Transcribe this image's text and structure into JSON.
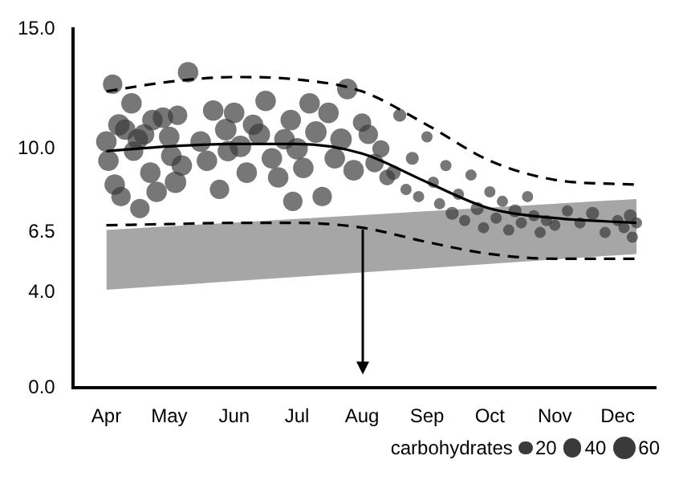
{
  "chart_data": {
    "type": "bubble",
    "legend_title": "carbohydrates",
    "size_legend": [
      20,
      40,
      60
    ],
    "xlim": [
      "--03-16",
      "--12-19"
    ],
    "xticks": [
      {
        "value": "--04-01",
        "label": "Apr"
      },
      {
        "value": "--05-01",
        "label": "May"
      },
      {
        "value": "--06-01",
        "label": "Jun"
      },
      {
        "value": "--07-01",
        "label": "Jul"
      },
      {
        "value": "--08-01",
        "label": "Aug"
      },
      {
        "value": "--09-01",
        "label": "Sep"
      },
      {
        "value": "--10-01",
        "label": "Oct"
      },
      {
        "value": "--11-01",
        "label": "Nov"
      },
      {
        "value": "--12-01",
        "label": "Dec"
      }
    ],
    "ylim": [
      0,
      15
    ],
    "yticks": [
      {
        "value": 0,
        "label": "0.0"
      },
      {
        "value": 4,
        "label": "4.0"
      },
      {
        "value": 6.5,
        "label": "6.5"
      },
      {
        "value": 10,
        "label": "10.0"
      },
      {
        "value": 15,
        "label": "15.0"
      }
    ],
    "grid": false,
    "series": [
      {
        "type": "area",
        "color": "#a6a6a6",
        "x": [
          "--04-01",
          "--12-10"
        ],
        "values": [
          null,
          null
        ],
        "lower": [
          4.1,
          5.6
        ],
        "upper": [
          6.6,
          7.9
        ]
      },
      {
        "color": "#3a3a3a",
        "x": [
          "--04-01",
          "--04-02",
          "--04-04",
          "--04-05",
          "--04-07",
          "--04-08",
          "--04-10",
          "--04-13",
          "--04-14",
          "--04-16",
          "--04-17",
          "--04-19",
          "--04-22",
          "--04-23",
          "--04-25",
          "--04-28",
          "--05-01",
          "--05-02",
          "--05-04",
          "--05-05",
          "--05-07",
          "--05-10",
          "--05-16",
          "--05-19",
          "--05-22",
          "--05-25",
          "--05-28",
          "--05-29",
          "--06-01",
          "--06-04",
          "--06-07",
          "--06-10",
          "--06-13",
          "--06-16",
          "--06-19",
          "--06-22",
          "--06-25",
          "--06-28",
          "--06-29",
          "--07-01",
          "--07-04",
          "--07-07",
          "--07-10",
          "--07-13",
          "--07-16",
          "--07-19",
          "--07-22",
          "--07-25",
          "--07-28",
          "--08-01",
          "--08-04",
          "--08-07",
          "--08-10",
          "--08-13",
          "--08-16",
          "--08-19",
          "--08-22",
          "--08-25",
          "--08-28",
          "--09-01",
          "--09-04",
          "--09-07",
          "--09-10",
          "--09-13",
          "--09-16",
          "--09-19",
          "--09-22",
          "--09-25",
          "--09-28",
          "--10-01",
          "--10-04",
          "--10-07",
          "--10-10",
          "--10-13",
          "--10-16",
          "--10-19",
          "--10-22",
          "--10-25",
          "--10-28",
          "--11-01",
          "--11-07",
          "--11-13",
          "--11-19",
          "--11-25",
          "--12-01",
          "--12-04",
          "--12-07",
          "--12-10",
          "--12-08"
        ],
        "values": [
          10.3,
          9.5,
          12.7,
          8.5,
          11.0,
          8.0,
          10.8,
          11.9,
          9.9,
          10.4,
          7.5,
          10.6,
          9.0,
          11.2,
          8.2,
          11.3,
          10.5,
          9.7,
          8.6,
          11.4,
          9.3,
          13.2,
          10.3,
          9.5,
          11.6,
          8.3,
          10.8,
          9.9,
          11.5,
          10.1,
          9.0,
          11.0,
          10.6,
          12.0,
          9.6,
          8.8,
          10.4,
          11.2,
          7.8,
          10.0,
          9.2,
          11.9,
          10.7,
          8.0,
          11.5,
          9.6,
          10.4,
          12.5,
          9.1,
          11.1,
          10.6,
          9.4,
          10.0,
          8.8,
          9.0,
          11.4,
          8.3,
          9.6,
          8.0,
          10.5,
          8.6,
          7.7,
          9.3,
          7.3,
          8.1,
          7.0,
          8.9,
          7.5,
          6.7,
          8.2,
          7.1,
          7.8,
          6.6,
          7.4,
          6.9,
          8.0,
          7.2,
          6.5,
          7.0,
          6.8,
          7.4,
          6.9,
          7.3,
          6.5,
          7.0,
          6.7,
          7.2,
          6.9,
          6.3
        ],
        "sizes": [
          50,
          50,
          45,
          50,
          55,
          45,
          50,
          50,
          45,
          50,
          45,
          50,
          50,
          50,
          50,
          50,
          50,
          50,
          55,
          45,
          50,
          50,
          50,
          50,
          50,
          45,
          55,
          50,
          50,
          55,
          50,
          50,
          55,
          50,
          50,
          50,
          50,
          50,
          45,
          55,
          50,
          50,
          55,
          45,
          50,
          50,
          55,
          50,
          50,
          40,
          45,
          40,
          35,
          30,
          25,
          20,
          15,
          20,
          15,
          15,
          15,
          15,
          15,
          20,
          15,
          15,
          15,
          20,
          15,
          15,
          15,
          15,
          15,
          20,
          15,
          15,
          15,
          15,
          15,
          15,
          15,
          15,
          20,
          15,
          15,
          15,
          20,
          15,
          15
        ]
      },
      {
        "type": "line",
        "color": "#000000",
        "line_style": "solid",
        "x": [
          "--04-01",
          "--05-01",
          "--06-01",
          "--07-01",
          "--08-01",
          "--09-01",
          "--10-01",
          "--11-01",
          "--12-10"
        ],
        "values": [
          9.9,
          10.1,
          10.2,
          10.2,
          9.8,
          8.6,
          7.5,
          7.1,
          6.9
        ]
      },
      {
        "type": "line",
        "color": "#000000",
        "line_style": "dashed",
        "x": [
          "--04-01",
          "--05-01",
          "--06-01",
          "--07-01",
          "--08-01",
          "--09-01",
          "--10-01",
          "--11-01",
          "--12-10"
        ],
        "values": [
          12.4,
          12.8,
          13.0,
          12.9,
          12.4,
          11.0,
          9.5,
          8.7,
          8.5
        ]
      },
      {
        "type": "line",
        "color": "#000000",
        "line_style": "dashed",
        "x": [
          "--04-01",
          "--05-01",
          "--06-01",
          "--07-01",
          "--08-01",
          "--09-01",
          "--10-01",
          "--11-01",
          "--12-10"
        ],
        "values": [
          6.8,
          6.85,
          6.9,
          6.9,
          6.7,
          6.1,
          5.6,
          5.4,
          5.4
        ]
      }
    ]
  }
}
